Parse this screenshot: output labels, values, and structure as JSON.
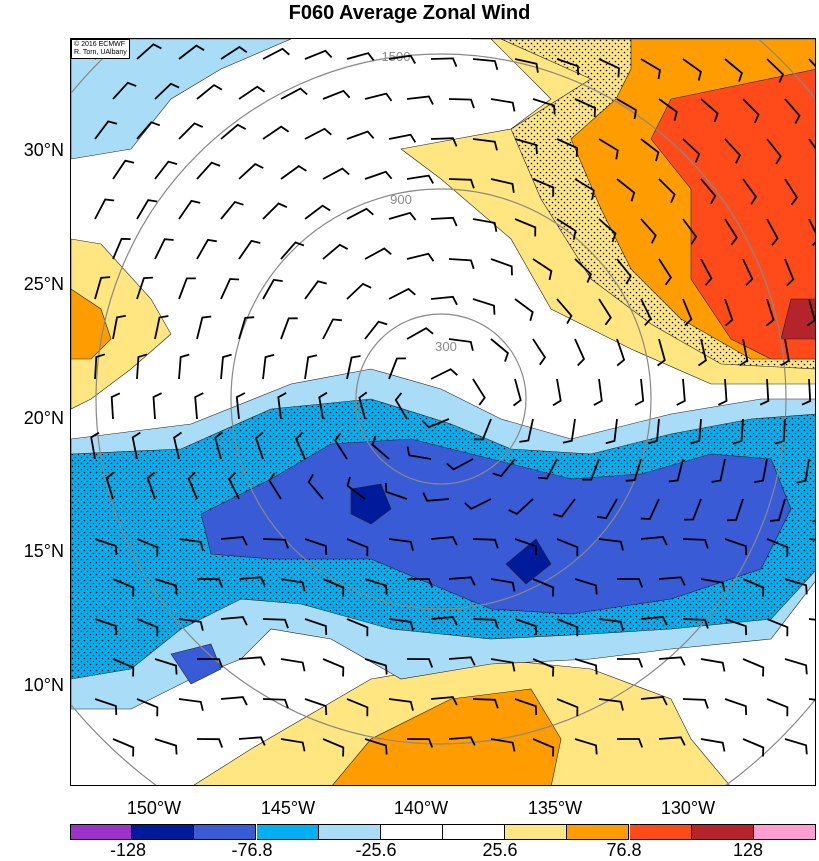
{
  "title": "F060 Average Zonal Wind",
  "credit": "© 2016 ECMWF\nR. Torn, UAlbany",
  "lat_labels": [
    "30°N",
    "25°N",
    "20°N",
    "15°N",
    "10°N"
  ],
  "lon_labels": [
    "150°W",
    "145°W",
    "140°W",
    "135°W",
    "130°W"
  ],
  "ring_labels": [
    "300",
    "900",
    "1500"
  ],
  "colorbar": {
    "colors": [
      "#9d32c8",
      "#001a9c",
      "#3a5bd6",
      "#00b0f0",
      "#a8dcf7",
      "#ffffff",
      "#ffffff",
      "#ffe680",
      "#ff9d00",
      "#ff4b1a",
      "#b4242a",
      "#ff9ed0"
    ],
    "tick_labels": [
      "-128",
      "-76.8",
      "-25.6",
      "25.6",
      "76.8",
      "128"
    ]
  },
  "colors": {
    "strong_easterly": "#001a9c",
    "easterly": "#3a5bd6",
    "moderate_easterly": "#00b0f0",
    "weak_easterly": "#a8dcf7",
    "weak_westerly": "#ffe680",
    "moderate_westerly": "#ff9d00",
    "westerly": "#ff4b1a",
    "strong_westerly": "#b4242a"
  }
}
